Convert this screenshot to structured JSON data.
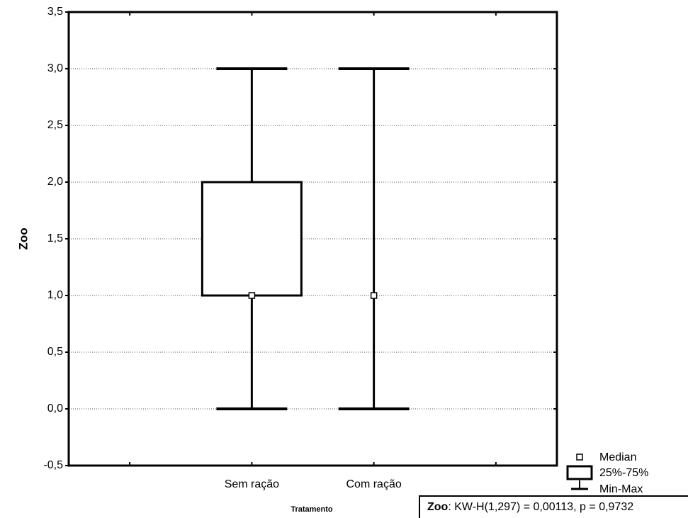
{
  "chart_data": {
    "type": "box",
    "y_label": "Zoo",
    "x_label": "Tratamento",
    "categories": [
      "Sem ração",
      "Com ração"
    ],
    "boxes": [
      {
        "min": 0,
        "q1": 1,
        "median": 1,
        "q3": 2,
        "max": 3
      },
      {
        "min": 0,
        "q1": 1,
        "median": 1,
        "q3": 1,
        "max": 3
      }
    ],
    "ylim": [
      -0.5,
      3.5
    ],
    "yticks": [
      {
        "value": -0.5,
        "label": "-0,5"
      },
      {
        "value": 0,
        "label": "0,0"
      },
      {
        "value": 0.5,
        "label": "0,5"
      },
      {
        "value": 1,
        "label": "1,0"
      },
      {
        "value": 1.5,
        "label": "1,5"
      },
      {
        "value": 2,
        "label": "2,0"
      },
      {
        "value": 2.5,
        "label": "2,5"
      },
      {
        "value": 3,
        "label": "3,0"
      },
      {
        "value": 3.5,
        "label": "3,5"
      }
    ],
    "grid": true,
    "legend": [
      "Median",
      "25%-75%",
      "Min-Max"
    ],
    "annotation_variable": "Zoo",
    "annotation": ": KW-H(1,297) = 0,00113, p = 0,9732",
    "color": "#000000"
  }
}
